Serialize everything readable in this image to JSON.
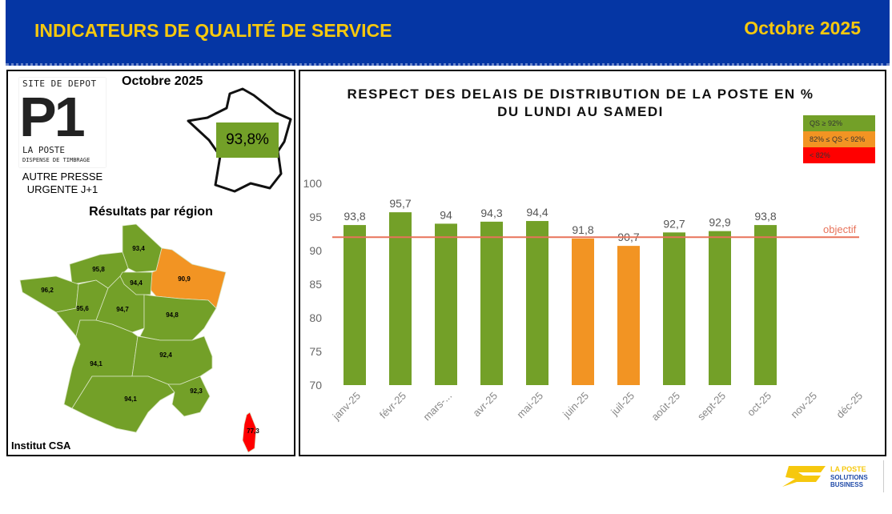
{
  "header": {
    "title": "INDICATEURS DE QUALITÉ DE SERVICE",
    "date": "Octobre 2025"
  },
  "left": {
    "stamp": {
      "top": "SITE DE DEPOT",
      "big": "P1",
      "brand": "LA POSTE",
      "bottom": "DISPENSE DE TIMBRAGE"
    },
    "product_line1": "AUTRE PRESSE",
    "product_line2": "URGENTE J+1",
    "period": "Octobre 2025",
    "national_value": "93,8%",
    "regions_title": "Résultats par région",
    "regions": [
      {
        "name": "Hauts-de-France",
        "value": "93,4",
        "status": "green"
      },
      {
        "name": "Normandie",
        "value": "95,8",
        "status": "green"
      },
      {
        "name": "Grand Est",
        "value": "90,9",
        "status": "orange"
      },
      {
        "name": "Île-de-France",
        "value": "94,4",
        "status": "green"
      },
      {
        "name": "Bretagne",
        "value": "96,2",
        "status": "green"
      },
      {
        "name": "Pays de la Loire",
        "value": "95,6",
        "status": "green"
      },
      {
        "name": "Centre-Val de Loire",
        "value": "94,7",
        "status": "green"
      },
      {
        "name": "Bourgogne-Franche-Comté",
        "value": "94,8",
        "status": "green"
      },
      {
        "name": "Nouvelle-Aquitaine",
        "value": "94,1",
        "status": "green"
      },
      {
        "name": "Auvergne-Rhône-Alpes",
        "value": "92,4",
        "status": "green"
      },
      {
        "name": "Occitanie",
        "value": "94,1",
        "status": "green"
      },
      {
        "name": "Provence-Alpes-Côte d'Azur",
        "value": "92,3",
        "status": "green"
      },
      {
        "name": "Corse",
        "value": "77,3",
        "status": "red"
      }
    ],
    "source": "Institut CSA"
  },
  "colors": {
    "green": "#73a028",
    "orange": "#f29423",
    "red": "#ff0000",
    "objective": "#e8735a",
    "header": "#0536a4",
    "yellow": "#f6c80e"
  },
  "legend": [
    "QS ≥ 92%",
    "82% ≤ QS < 92%",
    "< 82%"
  ],
  "chart_data": {
    "type": "bar",
    "title_line1": "RESPECT DES DELAIS DE DISTRIBUTION DE LA POSTE EN %",
    "title_line2": "DU LUNDI AU SAMEDI",
    "categories": [
      "janv-25",
      "févr-25",
      "mars-...",
      "avr-25",
      "mai-25",
      "juin-25",
      "juil-25",
      "août-25",
      "sept-25",
      "oct-25",
      "nov-25",
      "déc-25"
    ],
    "values": [
      93.8,
      95.7,
      94,
      94.3,
      94.4,
      91.8,
      90.7,
      92.7,
      92.9,
      93.8,
      null,
      null
    ],
    "labels": [
      "93,8",
      "95,7",
      "94",
      "94,3",
      "94,4",
      "91,8",
      "90,7",
      "92,7",
      "92,9",
      "93,8",
      "",
      ""
    ],
    "status": [
      "green",
      "green",
      "green",
      "green",
      "green",
      "orange",
      "orange",
      "green",
      "green",
      "green",
      "",
      ""
    ],
    "ylim": [
      70,
      100
    ],
    "yticks": [
      70,
      75,
      80,
      85,
      90,
      95,
      100
    ],
    "objective": 92,
    "objective_label": "objectif"
  },
  "logo": {
    "line1": "LA POSTE",
    "line2": "SOLUTIONS",
    "line3": "BUSINESS"
  }
}
